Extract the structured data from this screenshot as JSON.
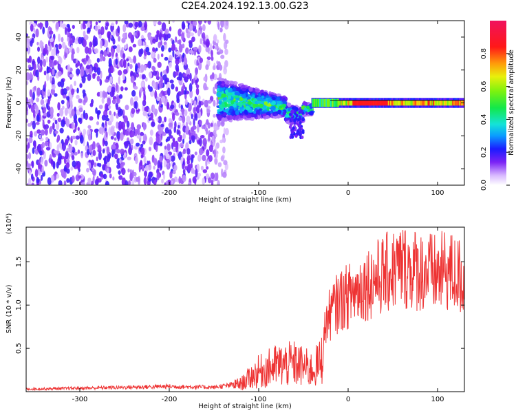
{
  "title": "C2E4.2024.192.13.00.G23",
  "chart_data": [
    {
      "type": "heatmap",
      "xlabel": "Height of straight line (km)",
      "ylabel": "Frequency (Hz)",
      "xlim": [
        -360,
        130
      ],
      "ylim": [
        -50,
        50
      ],
      "xticks": [
        -300,
        -200,
        -100,
        0,
        100
      ],
      "yticks": [
        -40,
        -20,
        0,
        20,
        40
      ],
      "colorbar": {
        "label": "Normalized spectral amplitude",
        "range": [
          0.0,
          1.0
        ],
        "ticks": [
          0.0,
          0.2,
          0.4,
          0.6,
          0.8
        ],
        "tick_labels": [
          "0.0",
          "0.2",
          "0.4",
          "0.6",
          "0.8"
        ]
      },
      "regions": [
        {
          "x_range": [
            -360,
            -150
          ],
          "f_range": [
            -50,
            50
          ],
          "amplitude": 0.15,
          "description": "diffuse noise"
        },
        {
          "x_range": [
            -145,
            -40
          ],
          "f_range": [
            -15,
            15
          ],
          "amplitude": 0.35,
          "trend": "narrowing toward 0 Hz"
        },
        {
          "x_range": [
            -40,
            130
          ],
          "f_range": [
            -2,
            2
          ],
          "amplitude": 0.9,
          "description": "narrow line at 0 Hz"
        }
      ]
    },
    {
      "type": "line",
      "xlabel": "Height of straight line (km)",
      "ylabel": "SNR (10 * v/v)",
      "multiplier": "(x10⁴)",
      "xlim": [
        -360,
        130
      ],
      "ylim": [
        0,
        19000
      ],
      "xticks": [
        -300,
        -200,
        -100,
        0,
        100
      ],
      "yticks": [
        0.5,
        1.0,
        1.5
      ],
      "ytick_labels": [
        "0.5",
        "1.0",
        "1.5"
      ],
      "series": [
        {
          "color": "#ee3333",
          "x": [
            -360,
            -300,
            -250,
            -200,
            -150,
            -120,
            -100,
            -80,
            -60,
            -40,
            -30,
            -25,
            -20,
            -10,
            0,
            20,
            40,
            60,
            80,
            100,
            110,
            120,
            130
          ],
          "y": [
            300,
            400,
            500,
            600,
            500,
            900,
            2300,
            3000,
            3200,
            2500,
            3500,
            8000,
            9000,
            10500,
            11000,
            12500,
            13500,
            14500,
            14000,
            13500,
            14000,
            13500,
            13000
          ]
        }
      ]
    }
  ]
}
